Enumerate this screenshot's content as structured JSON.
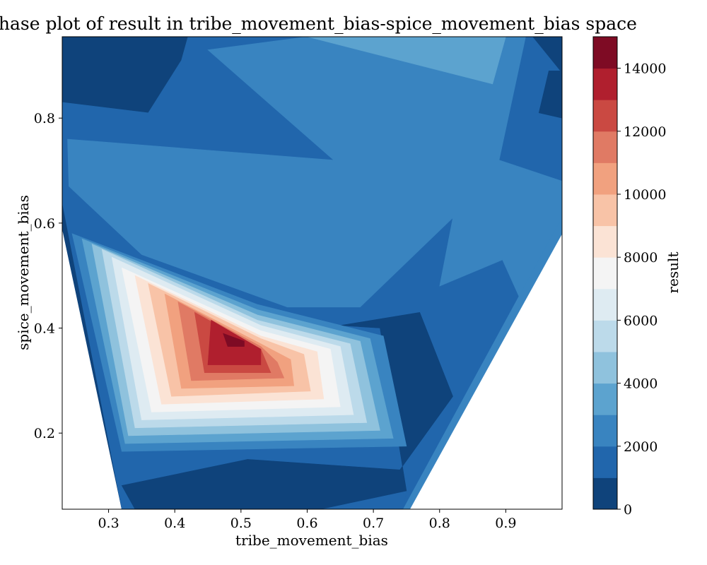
{
  "chart_data": {
    "type": "contourf",
    "title": "Phase plot of result in tribe_movement_bias-spice_movement_bias space",
    "xlabel": "tribe_movement_bias",
    "ylabel": "spice_movement_bias",
    "xlim": [
      0.23,
      0.985
    ],
    "ylim": [
      0.055,
      0.955
    ],
    "xticks": [
      0.3,
      0.4,
      0.5,
      0.6,
      0.7,
      0.8,
      0.9
    ],
    "xtick_labels": [
      "0.3",
      "0.4",
      "0.5",
      "0.6",
      "0.7",
      "0.8",
      "0.9"
    ],
    "yticks": [
      0.2,
      0.4,
      0.6,
      0.8
    ],
    "ytick_labels": [
      "0.2",
      "0.4",
      "0.6",
      "0.8"
    ],
    "colorbar": {
      "label": "result",
      "range": [
        0,
        15000
      ],
      "levels": [
        0,
        1000,
        2000,
        3000,
        4000,
        5000,
        6000,
        7000,
        8000,
        9000,
        10000,
        11000,
        12000,
        13000,
        14000,
        15000
      ],
      "ticks": [
        0,
        2000,
        4000,
        6000,
        8000,
        10000,
        12000,
        14000
      ],
      "tick_labels": [
        "0",
        "2000",
        "4000",
        "6000",
        "8000",
        "10000",
        "12000",
        "14000"
      ],
      "colors": [
        "#0f437b",
        "#2166ac",
        "#3984c0",
        "#5ca3cf",
        "#8fc2dd",
        "#bcdaea",
        "#deebf2",
        "#f4f4f4",
        "#fbe3d5",
        "#f8c3a7",
        "#f1a17f",
        "#e07a64",
        "#ca4942",
        "#b01f2e",
        "#7e0b24"
      ]
    },
    "peak": {
      "x": 0.49,
      "y": 0.38,
      "value": 15000
    },
    "regions": [
      {
        "level": 0,
        "points": [
          [
            0.23,
            0.955
          ],
          [
            0.985,
            0.955
          ],
          [
            0.985,
            0.6
          ],
          [
            0.745,
            0.055
          ],
          [
            0.32,
            0.055
          ],
          [
            0.23,
            0.59
          ]
        ]
      },
      {
        "level": 1,
        "points": [
          [
            0.23,
            0.83
          ],
          [
            0.36,
            0.81
          ],
          [
            0.41,
            0.91
          ],
          [
            0.42,
            0.955
          ],
          [
            0.94,
            0.955
          ],
          [
            0.985,
            0.885
          ],
          [
            0.985,
            0.6
          ],
          [
            0.745,
            0.055
          ],
          [
            0.32,
            0.055
          ],
          [
            0.23,
            0.64
          ]
        ]
      },
      {
        "level": 0,
        "points": [
          [
            0.95,
            0.81
          ],
          [
            0.965,
            0.89
          ],
          [
            0.985,
            0.89
          ],
          [
            0.985,
            0.8
          ]
        ]
      },
      {
        "level": 1,
        "points": [
          [
            0.415,
            0.055
          ],
          [
            0.745,
            0.055
          ],
          [
            0.75,
            0.09
          ],
          [
            0.72,
            0.13
          ],
          [
            0.48,
            0.1
          ]
        ]
      },
      {
        "level": 2,
        "points": [
          [
            0.238,
            0.76
          ],
          [
            0.64,
            0.72
          ],
          [
            0.45,
            0.93
          ],
          [
            0.6,
            0.955
          ],
          [
            0.93,
            0.955
          ],
          [
            0.89,
            0.72
          ],
          [
            0.985,
            0.68
          ],
          [
            0.985,
            0.6
          ],
          [
            0.92,
            0.46
          ],
          [
            0.895,
            0.53
          ],
          [
            0.8,
            0.48
          ],
          [
            0.82,
            0.61
          ],
          [
            0.68,
            0.44
          ],
          [
            0.57,
            0.44
          ],
          [
            0.35,
            0.54
          ],
          [
            0.24,
            0.67
          ]
        ]
      },
      {
        "level": 2,
        "points": [
          [
            0.745,
            0.055
          ],
          [
            0.98,
            0.6
          ],
          [
            0.985,
            0.6
          ],
          [
            0.985,
            0.58
          ],
          [
            0.755,
            0.055
          ]
        ]
      },
      {
        "level": 3,
        "points": [
          [
            0.6,
            0.955
          ],
          [
            0.9,
            0.955
          ],
          [
            0.88,
            0.865
          ]
        ]
      },
      {
        "level": 0,
        "points": [
          [
            0.77,
            0.43
          ],
          [
            0.82,
            0.27
          ],
          [
            0.74,
            0.13
          ],
          [
            0.51,
            0.15
          ],
          [
            0.32,
            0.1
          ],
          [
            0.34,
            0.055
          ],
          [
            0.62,
            0.055
          ],
          [
            0.75,
            0.09
          ],
          [
            0.71,
            0.4
          ],
          [
            0.65,
            0.405
          ]
        ]
      },
      {
        "level": 2,
        "points": [
          [
            0.245,
            0.58
          ],
          [
            0.525,
            0.445
          ],
          [
            0.715,
            0.385
          ],
          [
            0.75,
            0.175
          ],
          [
            0.32,
            0.165
          ]
        ]
      },
      {
        "level": 3,
        "points": [
          [
            0.26,
            0.57
          ],
          [
            0.525,
            0.435
          ],
          [
            0.695,
            0.38
          ],
          [
            0.73,
            0.19
          ],
          [
            0.325,
            0.18
          ]
        ]
      },
      {
        "level": 4,
        "points": [
          [
            0.275,
            0.56
          ],
          [
            0.525,
            0.425
          ],
          [
            0.68,
            0.375
          ],
          [
            0.71,
            0.205
          ],
          [
            0.33,
            0.195
          ]
        ]
      },
      {
        "level": 5,
        "points": [
          [
            0.29,
            0.55
          ],
          [
            0.525,
            0.415
          ],
          [
            0.665,
            0.37
          ],
          [
            0.69,
            0.22
          ],
          [
            0.34,
            0.21
          ]
        ]
      },
      {
        "level": 6,
        "points": [
          [
            0.305,
            0.535
          ],
          [
            0.53,
            0.405
          ],
          [
            0.65,
            0.365
          ],
          [
            0.67,
            0.235
          ],
          [
            0.35,
            0.225
          ]
        ]
      },
      {
        "level": 7,
        "points": [
          [
            0.32,
            0.515
          ],
          [
            0.53,
            0.395
          ],
          [
            0.635,
            0.36
          ],
          [
            0.65,
            0.25
          ],
          [
            0.365,
            0.24
          ]
        ]
      },
      {
        "level": 8,
        "points": [
          [
            0.34,
            0.5
          ],
          [
            0.53,
            0.385
          ],
          [
            0.615,
            0.355
          ],
          [
            0.625,
            0.265
          ],
          [
            0.38,
            0.255
          ]
        ]
      },
      {
        "level": 9,
        "points": [
          [
            0.36,
            0.485
          ],
          [
            0.53,
            0.38
          ],
          [
            0.595,
            0.35
          ],
          [
            0.605,
            0.28
          ],
          [
            0.395,
            0.27
          ]
        ]
      },
      {
        "level": 10,
        "points": [
          [
            0.385,
            0.465
          ],
          [
            0.53,
            0.37
          ],
          [
            0.575,
            0.34
          ],
          [
            0.58,
            0.29
          ],
          [
            0.41,
            0.285
          ]
        ]
      },
      {
        "level": 11,
        "points": [
          [
            0.405,
            0.45
          ],
          [
            0.53,
            0.365
          ],
          [
            0.555,
            0.335
          ],
          [
            0.565,
            0.305
          ],
          [
            0.425,
            0.3
          ]
        ]
      },
      {
        "level": 12,
        "points": [
          [
            0.43,
            0.43
          ],
          [
            0.53,
            0.36
          ],
          [
            0.54,
            0.33
          ],
          [
            0.545,
            0.315
          ],
          [
            0.445,
            0.315
          ]
        ]
      },
      {
        "level": 13,
        "points": [
          [
            0.455,
            0.415
          ],
          [
            0.53,
            0.36
          ],
          [
            0.53,
            0.33
          ],
          [
            0.45,
            0.33
          ]
        ]
      },
      {
        "level": 14,
        "points": [
          [
            0.473,
            0.39
          ],
          [
            0.505,
            0.375
          ],
          [
            0.505,
            0.365
          ],
          [
            0.48,
            0.365
          ]
        ]
      }
    ]
  }
}
